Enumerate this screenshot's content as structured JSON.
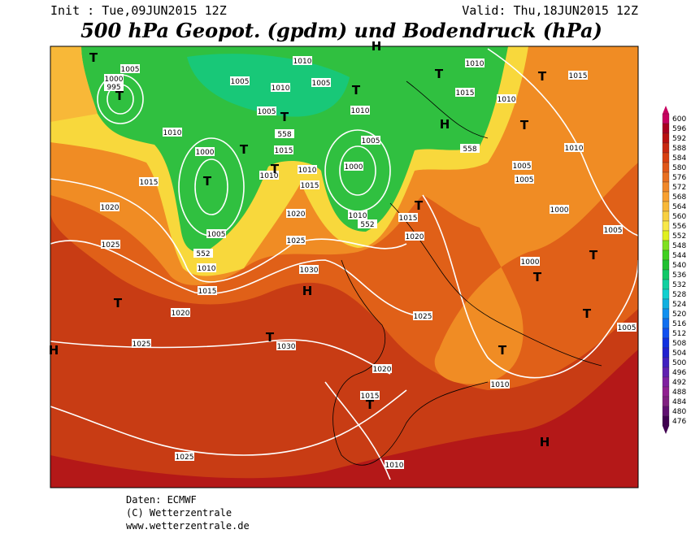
{
  "header": {
    "init": "Init : Tue,09JUN2015 12Z",
    "valid": "Valid: Thu,18JUN2015 12Z",
    "title": "500 hPa Geopot. (gpdm) und Bodendruck (hPa)"
  },
  "map": {
    "isobar_labels": [
      "1005",
      "1000",
      "995",
      "1005",
      "1010",
      "1010",
      "1005",
      "1005",
      "1010",
      "1010",
      "1015",
      "1010",
      "1015",
      "1010",
      "1000",
      "1015",
      "1010",
      "1010",
      "1015",
      "1005",
      "1000",
      "1010",
      "1020",
      "1015",
      "1020",
      "1025",
      "1015",
      "1020",
      "1025",
      "1030",
      "1005",
      "1010",
      "1015",
      "1020",
      "1025",
      "1030",
      "1025",
      "1020",
      "1015",
      "1010",
      "1010",
      "1005",
      "1005",
      "1000",
      "1005",
      "1000",
      "1005",
      "1025",
      "1010",
      "558",
      "558",
      "552",
      "552"
    ],
    "centers": [
      "T",
      "T",
      "H",
      "T",
      "T",
      "T",
      "H",
      "T",
      "T",
      "T",
      "T",
      "T",
      "T",
      "T",
      "T",
      "H",
      "T",
      "T",
      "T",
      "T",
      "T",
      "H",
      "H"
    ]
  },
  "legend": {
    "values": [
      600,
      596,
      592,
      588,
      584,
      580,
      576,
      572,
      568,
      564,
      560,
      556,
      552,
      548,
      544,
      540,
      536,
      532,
      528,
      524,
      520,
      516,
      512,
      508,
      504,
      500,
      496,
      492,
      488,
      484,
      480,
      476
    ],
    "colors": [
      "#c80060",
      "#a80020",
      "#b81010",
      "#c82810",
      "#d84010",
      "#e05818",
      "#e87020",
      "#f08828",
      "#f8a030",
      "#f8b838",
      "#f8d040",
      "#f8e848",
      "#e0f020",
      "#80e020",
      "#40d020",
      "#20c030",
      "#10c868",
      "#10d0a0",
      "#10d0d0",
      "#10b0e0",
      "#1090f0",
      "#1070f0",
      "#1050f0",
      "#1030e0",
      "#2020d0",
      "#4020c0",
      "#6020b0",
      "#8020a0",
      "#902090",
      "#802080",
      "#601070",
      "#400050"
    ]
  },
  "footer": {
    "source": "Daten: ECMWF",
    "copyright": "(C) Wetterzentrale",
    "url": "www.wetterzentrale.de"
  }
}
